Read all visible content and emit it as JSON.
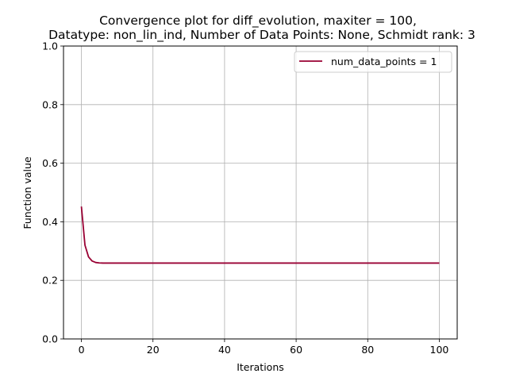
{
  "chart_data": {
    "type": "line",
    "title_line1": "Convergence plot for diff_evolution, maxiter = 100,",
    "title_line2": "Datatype: non_lin_ind, Number of Data Points: None, Schmidt rank: 3",
    "xlabel": "Iterations",
    "ylabel": "Function value",
    "xlim": [
      -5,
      105
    ],
    "ylim": [
      0,
      1.0
    ],
    "xticks": [
      0,
      20,
      40,
      60,
      80,
      100
    ],
    "yticks": [
      0.0,
      0.2,
      0.4,
      0.6,
      0.8,
      1.0
    ],
    "xtick_labels": [
      "0",
      "20",
      "40",
      "60",
      "80",
      "100"
    ],
    "ytick_labels": [
      "0.0",
      "0.2",
      "0.4",
      "0.6",
      "0.8",
      "1.0"
    ],
    "grid": true,
    "legend_position": "top-right",
    "series": [
      {
        "name": "num_data_points = 1",
        "color": "#990033",
        "x": [
          0,
          1,
          2,
          3,
          4,
          5,
          6,
          8,
          10,
          20,
          40,
          60,
          80,
          100
        ],
        "y": [
          0.452,
          0.32,
          0.28,
          0.266,
          0.261,
          0.2595,
          0.259,
          0.259,
          0.259,
          0.259,
          0.259,
          0.259,
          0.259,
          0.259
        ]
      }
    ]
  }
}
